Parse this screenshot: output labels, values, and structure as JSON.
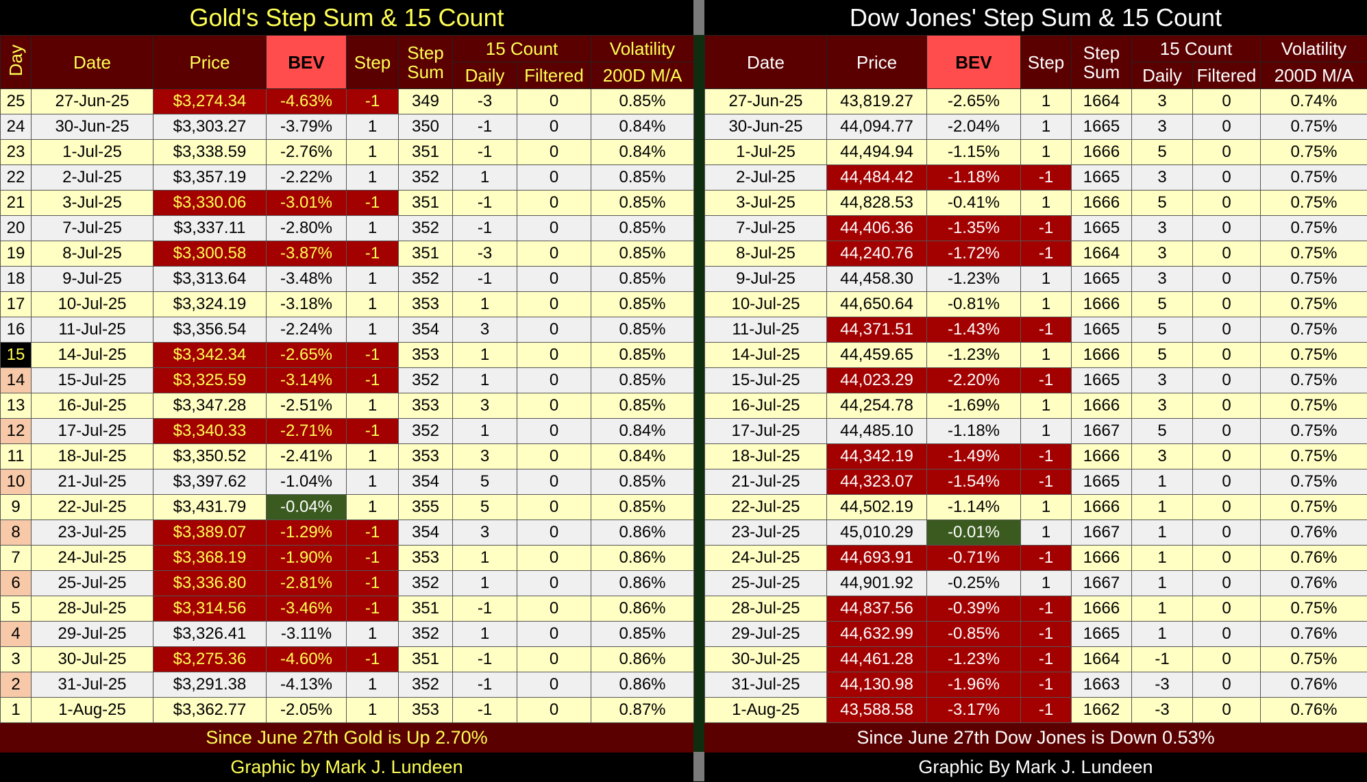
{
  "left": {
    "title": "Gold's Step Sum & 15 Count",
    "headers": {
      "day": "Day",
      "date": "Date",
      "price": "Price",
      "bev": "BEV",
      "step": "Step",
      "step_sum": "Step Sum",
      "count": "15 Count",
      "daily": "Daily",
      "filtered": "Filtered",
      "volatility": "Volatility",
      "ma": "200D M/A"
    },
    "rows": [
      [
        "25",
        "27-Jun-25",
        "$3,274.34",
        "-4.63%",
        "-1",
        "349",
        "-3",
        "0",
        "0.85%"
      ],
      [
        "24",
        "30-Jun-25",
        "$3,303.27",
        "-3.79%",
        "1",
        "350",
        "-1",
        "0",
        "0.84%"
      ],
      [
        "23",
        "1-Jul-25",
        "$3,338.59",
        "-2.76%",
        "1",
        "351",
        "-1",
        "0",
        "0.84%"
      ],
      [
        "22",
        "2-Jul-25",
        "$3,357.19",
        "-2.22%",
        "1",
        "352",
        "1",
        "0",
        "0.85%"
      ],
      [
        "21",
        "3-Jul-25",
        "$3,330.06",
        "-3.01%",
        "-1",
        "351",
        "-1",
        "0",
        "0.85%"
      ],
      [
        "20",
        "7-Jul-25",
        "$3,337.11",
        "-2.80%",
        "1",
        "352",
        "-1",
        "0",
        "0.85%"
      ],
      [
        "19",
        "8-Jul-25",
        "$3,300.58",
        "-3.87%",
        "-1",
        "351",
        "-3",
        "0",
        "0.85%"
      ],
      [
        "18",
        "9-Jul-25",
        "$3,313.64",
        "-3.48%",
        "1",
        "352",
        "-1",
        "0",
        "0.85%"
      ],
      [
        "17",
        "10-Jul-25",
        "$3,324.19",
        "-3.18%",
        "1",
        "353",
        "1",
        "0",
        "0.85%"
      ],
      [
        "16",
        "11-Jul-25",
        "$3,356.54",
        "-2.24%",
        "1",
        "354",
        "3",
        "0",
        "0.85%"
      ],
      [
        "15",
        "14-Jul-25",
        "$3,342.34",
        "-2.65%",
        "-1",
        "353",
        "1",
        "0",
        "0.85%"
      ],
      [
        "14",
        "15-Jul-25",
        "$3,325.59",
        "-3.14%",
        "-1",
        "352",
        "1",
        "0",
        "0.85%"
      ],
      [
        "13",
        "16-Jul-25",
        "$3,347.28",
        "-2.51%",
        "1",
        "353",
        "3",
        "0",
        "0.85%"
      ],
      [
        "12",
        "17-Jul-25",
        "$3,340.33",
        "-2.71%",
        "-1",
        "352",
        "1",
        "0",
        "0.84%"
      ],
      [
        "11",
        "18-Jul-25",
        "$3,350.52",
        "-2.41%",
        "1",
        "353",
        "3",
        "0",
        "0.84%"
      ],
      [
        "10",
        "21-Jul-25",
        "$3,397.62",
        "-1.04%",
        "1",
        "354",
        "5",
        "0",
        "0.85%"
      ],
      [
        "9",
        "22-Jul-25",
        "$3,431.79",
        "-0.04%",
        "1",
        "355",
        "5",
        "0",
        "0.85%"
      ],
      [
        "8",
        "23-Jul-25",
        "$3,389.07",
        "-1.29%",
        "-1",
        "354",
        "3",
        "0",
        "0.86%"
      ],
      [
        "7",
        "24-Jul-25",
        "$3,368.19",
        "-1.90%",
        "-1",
        "353",
        "1",
        "0",
        "0.86%"
      ],
      [
        "6",
        "25-Jul-25",
        "$3,336.80",
        "-2.81%",
        "-1",
        "352",
        "1",
        "0",
        "0.86%"
      ],
      [
        "5",
        "28-Jul-25",
        "$3,314.56",
        "-3.46%",
        "-1",
        "351",
        "-1",
        "0",
        "0.86%"
      ],
      [
        "4",
        "29-Jul-25",
        "$3,326.41",
        "-3.11%",
        "1",
        "352",
        "1",
        "0",
        "0.85%"
      ],
      [
        "3",
        "30-Jul-25",
        "$3,275.36",
        "-4.60%",
        "-1",
        "351",
        "-1",
        "0",
        "0.86%"
      ],
      [
        "2",
        "31-Jul-25",
        "$3,291.38",
        "-4.13%",
        "1",
        "352",
        "-1",
        "0",
        "0.86%"
      ],
      [
        "1",
        "1-Aug-25",
        "$3,362.77",
        "-2.05%",
        "1",
        "353",
        "-1",
        "0",
        "0.87%"
      ]
    ],
    "summary": "Since June 27th Gold is Up 2.70%",
    "credit": "Graphic by Mark J. Lundeen"
  },
  "right": {
    "title": "Dow Jones' Step Sum & 15 Count",
    "headers": {
      "date": "Date",
      "price": "Price",
      "bev": "BEV",
      "step": "Step",
      "step_sum": "Step Sum",
      "count": "15 Count",
      "daily": "Daily",
      "filtered": "Filtered",
      "volatility": "Volatility",
      "ma": "200D M/A"
    },
    "rows": [
      [
        "27-Jun-25",
        "43,819.27",
        "-2.65%",
        "1",
        "1664",
        "3",
        "0",
        "0.74%"
      ],
      [
        "30-Jun-25",
        "44,094.77",
        "-2.04%",
        "1",
        "1665",
        "3",
        "0",
        "0.75%"
      ],
      [
        "1-Jul-25",
        "44,494.94",
        "-1.15%",
        "1",
        "1666",
        "5",
        "0",
        "0.75%"
      ],
      [
        "2-Jul-25",
        "44,484.42",
        "-1.18%",
        "-1",
        "1665",
        "3",
        "0",
        "0.75%"
      ],
      [
        "3-Jul-25",
        "44,828.53",
        "-0.41%",
        "1",
        "1666",
        "5",
        "0",
        "0.75%"
      ],
      [
        "7-Jul-25",
        "44,406.36",
        "-1.35%",
        "-1",
        "1665",
        "3",
        "0",
        "0.75%"
      ],
      [
        "8-Jul-25",
        "44,240.76",
        "-1.72%",
        "-1",
        "1664",
        "3",
        "0",
        "0.75%"
      ],
      [
        "9-Jul-25",
        "44,458.30",
        "-1.23%",
        "1",
        "1665",
        "3",
        "0",
        "0.75%"
      ],
      [
        "10-Jul-25",
        "44,650.64",
        "-0.81%",
        "1",
        "1666",
        "5",
        "0",
        "0.75%"
      ],
      [
        "11-Jul-25",
        "44,371.51",
        "-1.43%",
        "-1",
        "1665",
        "5",
        "0",
        "0.75%"
      ],
      [
        "14-Jul-25",
        "44,459.65",
        "-1.23%",
        "1",
        "1666",
        "5",
        "0",
        "0.75%"
      ],
      [
        "15-Jul-25",
        "44,023.29",
        "-2.20%",
        "-1",
        "1665",
        "3",
        "0",
        "0.75%"
      ],
      [
        "16-Jul-25",
        "44,254.78",
        "-1.69%",
        "1",
        "1666",
        "3",
        "0",
        "0.75%"
      ],
      [
        "17-Jul-25",
        "44,485.10",
        "-1.18%",
        "1",
        "1667",
        "5",
        "0",
        "0.75%"
      ],
      [
        "18-Jul-25",
        "44,342.19",
        "-1.49%",
        "-1",
        "1666",
        "3",
        "0",
        "0.75%"
      ],
      [
        "21-Jul-25",
        "44,323.07",
        "-1.54%",
        "-1",
        "1665",
        "1",
        "0",
        "0.75%"
      ],
      [
        "22-Jul-25",
        "44,502.19",
        "-1.14%",
        "1",
        "1666",
        "1",
        "0",
        "0.75%"
      ],
      [
        "23-Jul-25",
        "45,010.29",
        "-0.01%",
        "1",
        "1667",
        "1",
        "0",
        "0.76%"
      ],
      [
        "24-Jul-25",
        "44,693.91",
        "-0.71%",
        "-1",
        "1666",
        "1",
        "0",
        "0.76%"
      ],
      [
        "25-Jul-25",
        "44,901.92",
        "-0.25%",
        "1",
        "1667",
        "1",
        "0",
        "0.76%"
      ],
      [
        "28-Jul-25",
        "44,837.56",
        "-0.39%",
        "-1",
        "1666",
        "1",
        "0",
        "0.75%"
      ],
      [
        "29-Jul-25",
        "44,632.99",
        "-0.85%",
        "-1",
        "1665",
        "1",
        "0",
        "0.76%"
      ],
      [
        "30-Jul-25",
        "44,461.28",
        "-1.23%",
        "-1",
        "1664",
        "-1",
        "0",
        "0.75%"
      ],
      [
        "31-Jul-25",
        "44,130.98",
        "-1.96%",
        "-1",
        "1663",
        "-3",
        "0",
        "0.76%"
      ],
      [
        "1-Aug-25",
        "43,588.58",
        "-3.17%",
        "-1",
        "1662",
        "-3",
        "0",
        "0.76%"
      ]
    ],
    "summary": "Since June 27th Dow Jones is Down 0.53%",
    "credit": "Graphic By Mark J. Lundeen"
  }
}
